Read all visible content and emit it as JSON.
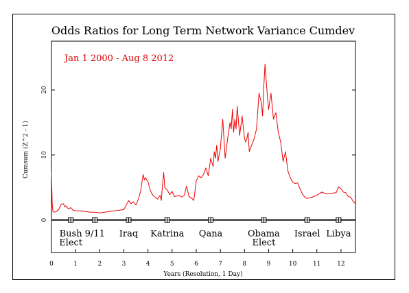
{
  "chart_data": {
    "type": "line",
    "title": "Odds Ratios for Long Term Network Variance Cumdev",
    "annotation": "Jan 1 2000 - Aug 8 2012",
    "xlabel": "Years (Resolution, 1 Day)",
    "ylabel": "Cumsum (Z^2 - 1)",
    "xlim": [
      0,
      12.6
    ],
    "ylim": [
      -5,
      27.5
    ],
    "xticks": [
      0,
      1,
      2,
      3,
      4,
      5,
      6,
      7,
      8,
      9,
      10,
      11,
      12
    ],
    "yticks": [
      0,
      10,
      20
    ],
    "grid": false,
    "series_color": "#ee0000",
    "annotation_color": "#dd0000",
    "series": [
      {
        "x": [
          0.0,
          0.03,
          0.06,
          0.1,
          0.2,
          0.3,
          0.4,
          0.5,
          0.55,
          0.6,
          0.7,
          0.8,
          0.9,
          1.0,
          1.2,
          1.4,
          1.6,
          1.8,
          2.0,
          2.2,
          2.4,
          2.6,
          2.8,
          3.0,
          3.1,
          3.2,
          3.3,
          3.4,
          3.5,
          3.6,
          3.7,
          3.75,
          3.8,
          3.85,
          3.9,
          4.0,
          4.1,
          4.2,
          4.3,
          4.4,
          4.5,
          4.55,
          4.6,
          4.65,
          4.7,
          4.8,
          4.9,
          5.0,
          5.1,
          5.2,
          5.3,
          5.4,
          5.5,
          5.6,
          5.7,
          5.8,
          5.9,
          6.0,
          6.1,
          6.2,
          6.3,
          6.4,
          6.5,
          6.6,
          6.7,
          6.75,
          6.8,
          6.85,
          6.9,
          7.0,
          7.1,
          7.2,
          7.3,
          7.4,
          7.45,
          7.5,
          7.55,
          7.6,
          7.65,
          7.7,
          7.8,
          7.9,
          8.0,
          8.05,
          8.1,
          8.15,
          8.2,
          8.3,
          8.4,
          8.5,
          8.6,
          8.7,
          8.75,
          8.8,
          8.85,
          8.9,
          8.95,
          9.0,
          9.1,
          9.2,
          9.3,
          9.4,
          9.5,
          9.6,
          9.7,
          9.8,
          9.9,
          10.0,
          10.1,
          10.2,
          10.3,
          10.4,
          10.5,
          10.6,
          10.8,
          11.0,
          11.2,
          11.4,
          11.6,
          11.8,
          11.9,
          12.0,
          12.1,
          12.2,
          12.3,
          12.4,
          12.5,
          12.6
        ],
        "values": [
          7.3,
          2.5,
          1.3,
          1.2,
          1.3,
          1.6,
          2.4,
          2.5,
          2.0,
          2.2,
          1.7,
          1.9,
          1.5,
          1.4,
          1.4,
          1.3,
          1.2,
          1.2,
          1.1,
          1.2,
          1.3,
          1.4,
          1.5,
          1.6,
          2.3,
          3.0,
          2.5,
          2.8,
          2.3,
          3.2,
          4.5,
          5.8,
          7.0,
          6.2,
          6.5,
          5.9,
          4.5,
          3.8,
          3.5,
          3.2,
          3.8,
          3.0,
          5.2,
          7.3,
          5.0,
          4.6,
          3.9,
          4.4,
          3.6,
          3.7,
          3.8,
          3.5,
          3.8,
          5.2,
          3.6,
          3.4,
          3.0,
          6.0,
          6.8,
          6.5,
          7.0,
          8.0,
          6.8,
          9.5,
          8.2,
          10.5,
          9.5,
          11.5,
          9.0,
          11.0,
          15.5,
          9.5,
          12.5,
          15.0,
          14.0,
          17.0,
          13.5,
          15.5,
          14.0,
          17.5,
          13.0,
          16.0,
          12.5,
          12.0,
          12.5,
          13.5,
          10.5,
          11.5,
          12.5,
          14.0,
          19.5,
          18.0,
          16.0,
          20.5,
          24.0,
          21.5,
          19.0,
          17.0,
          19.5,
          15.5,
          16.5,
          13.5,
          12.0,
          9.0,
          10.5,
          7.5,
          6.5,
          5.8,
          5.6,
          5.7,
          4.8,
          4.0,
          3.5,
          3.3,
          3.5,
          3.8,
          4.3,
          4.0,
          4.1,
          4.2,
          5.1,
          4.8,
          4.3,
          4.2,
          3.6,
          3.5,
          2.9,
          2.5
        ]
      }
    ],
    "events": [
      {
        "x": 0.8,
        "label": "Bush\nElect"
      },
      {
        "x": 1.8,
        "label": "9/11"
      },
      {
        "x": 3.2,
        "label": "Iraq"
      },
      {
        "x": 4.8,
        "label": "Katrina"
      },
      {
        "x": 6.6,
        "label": "Qana"
      },
      {
        "x": 8.8,
        "label": "Obama\nElect"
      },
      {
        "x": 10.6,
        "label": "Israel"
      },
      {
        "x": 11.9,
        "label": "Libya"
      }
    ]
  }
}
